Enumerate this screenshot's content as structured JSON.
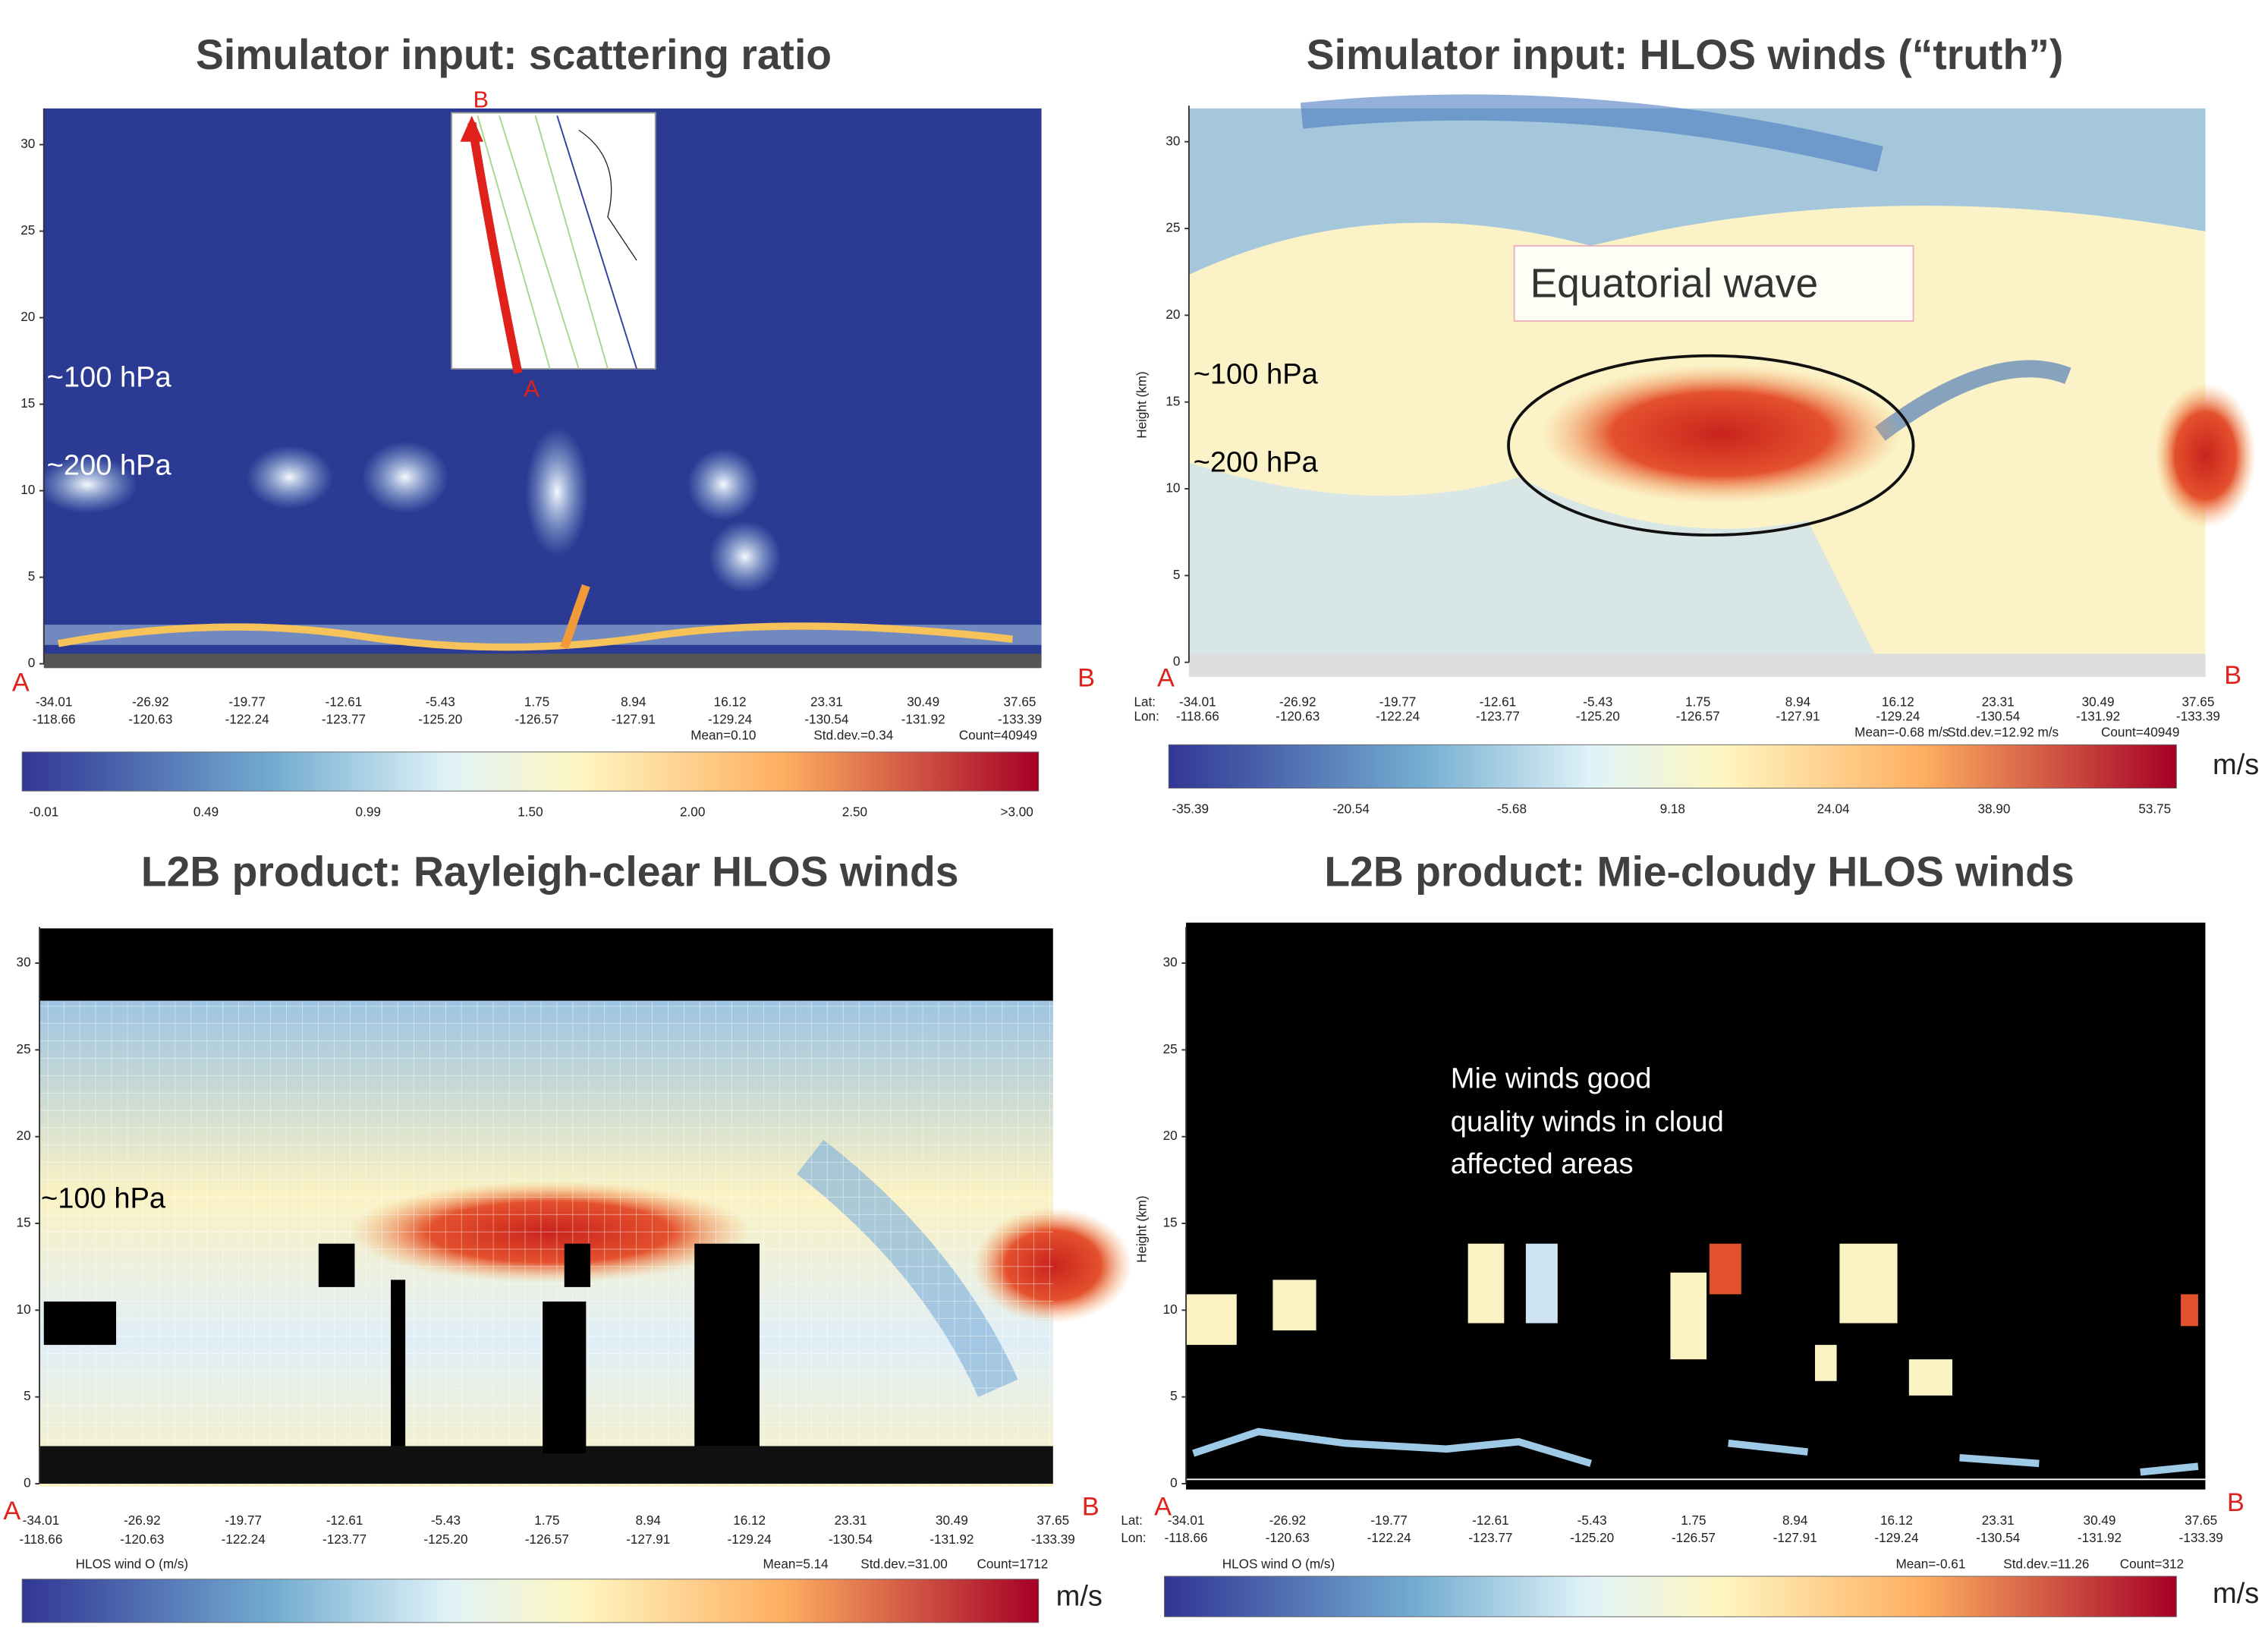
{
  "panels": [
    {
      "title": "Simulator input: scattering ratio",
      "y_ticks": [
        "30",
        "25",
        "20",
        "15",
        "10",
        "5",
        "0"
      ],
      "lat": [
        "-34.01",
        "-26.92",
        "-19.77",
        "-12.61",
        "-5.43",
        "1.75",
        "8.94",
        "16.12",
        "23.31",
        "30.49",
        "37.65"
      ],
      "lon": [
        "-118.66",
        "-120.63",
        "-122.24",
        "-123.77",
        "-125.20",
        "-126.57",
        "-127.91",
        "-129.24",
        "-130.54",
        "-131.92",
        "-133.39"
      ],
      "stats": [
        "Mean=0.10",
        "Std.dev.=0.34",
        "Count=40949"
      ],
      "colorbar_labels": [
        "-0.01",
        "0.49",
        "0.99",
        "1.50",
        "2.00",
        "2.50",
        ">3.00"
      ],
      "annotations": [
        "~100 hPa",
        "~200 hPa",
        "A",
        "B",
        "B",
        "A"
      ]
    },
    {
      "title": "Simulator input: HLOS winds (“truth”)",
      "y_axis_label": "Height (km)",
      "y_ticks": [
        "30",
        "25",
        "20",
        "15",
        "10",
        "5",
        "0"
      ],
      "lat_label": "Lat:",
      "lon_label": "Lon:",
      "lat": [
        "-34.01",
        "-26.92",
        "-19.77",
        "-12.61",
        "-5.43",
        "1.75",
        "8.94",
        "16.12",
        "23.31",
        "30.49",
        "37.65"
      ],
      "lon": [
        "-118.66",
        "-120.63",
        "-122.24",
        "-123.77",
        "-125.20",
        "-126.57",
        "-127.91",
        "-129.24",
        "-130.54",
        "-131.92",
        "-133.39"
      ],
      "stats": [
        "Mean=-0.68 m/s",
        "Std.dev.=12.92 m/s",
        "Count=40949"
      ],
      "colorbar_labels": [
        "-35.39",
        "-20.54",
        "-5.68",
        "9.18",
        "24.04",
        "38.90",
        "53.75"
      ],
      "colorbar_unit": "m/s",
      "annotations": [
        "~100 hPa",
        "~200 hPa",
        "Equatorial wave",
        "A",
        "B"
      ]
    },
    {
      "title": "L2B product: Rayleigh-clear HLOS winds",
      "y_ticks": [
        "30",
        "25",
        "20",
        "15",
        "10",
        "5",
        "0"
      ],
      "lat": [
        "-34.01",
        "-26.92",
        "-19.77",
        "-12.61",
        "-5.43",
        "1.75",
        "8.94",
        "16.12",
        "23.31",
        "30.49",
        "37.65"
      ],
      "lon": [
        "-118.66",
        "-120.63",
        "-122.24",
        "-123.77",
        "-125.20",
        "-126.57",
        "-127.91",
        "-129.24",
        "-130.54",
        "-131.92",
        "-133.39"
      ],
      "variable": "HLOS wind O (m/s)",
      "stats": [
        "Mean=5.14",
        "Std.dev.=31.00",
        "Count=1712"
      ],
      "colorbar_unit": "m/s",
      "annotations": [
        "~100 hPa",
        "A",
        "B"
      ]
    },
    {
      "title": "L2B product: Mie-cloudy HLOS winds",
      "y_axis_label": "Height (km)",
      "y_ticks": [
        "30",
        "25",
        "20",
        "15",
        "10",
        "5",
        "0"
      ],
      "lat_label": "Lat:",
      "lon_label": "Lon:",
      "lat": [
        "-34.01",
        "-26.92",
        "-19.77",
        "-12.61",
        "-5.43",
        "1.75",
        "8.94",
        "16.12",
        "23.31",
        "30.49",
        "37.65"
      ],
      "lon": [
        "-118.66",
        "-120.63",
        "-122.24",
        "-123.77",
        "-125.20",
        "-126.57",
        "-127.91",
        "-129.24",
        "-130.54",
        "-131.92",
        "-133.39"
      ],
      "variable": "HLOS wind O (m/s)",
      "stats": [
        "Mean=-0.61",
        "Std.dev.=11.26",
        "Count=312"
      ],
      "colorbar_unit": "m/s",
      "annotations": [
        "Mie winds good",
        "quality winds in cloud",
        "affected areas",
        "A",
        "B"
      ]
    }
  ]
}
